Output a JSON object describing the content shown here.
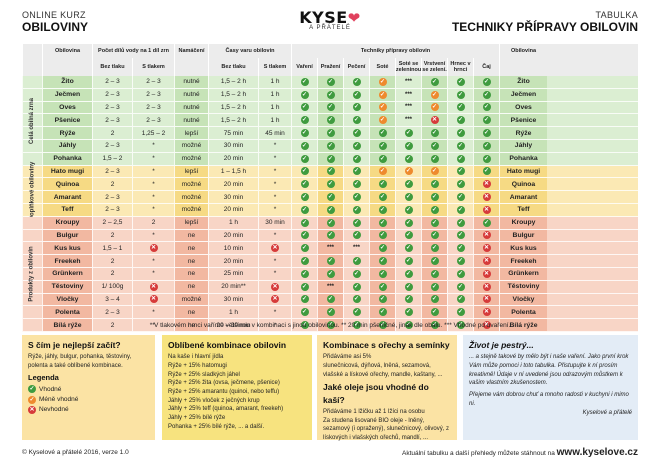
{
  "header": {
    "left_sub": "ONLINE KURZ",
    "left_main": "OBILOVINY",
    "logo": "KYSE",
    "logo_sub": "A PŘÁTELÉ",
    "right_sub": "TABULKA",
    "right_main": "TECHNIKY PŘÍPRAVY OBILOVIN"
  },
  "columns": {
    "grain": "Obilovina",
    "water_group": "Počet dílů vody na 1 díl zrn",
    "water_nopress": "Bez tlaku",
    "water_press": "S tlakem",
    "soak": "Namáčení",
    "time_group": "Časy varu obilovin",
    "time_nopress": "Bez tlaku",
    "time_press": "S tlakem",
    "tech_group": "Techniky přípravy obilovin",
    "tech": [
      "Vaření",
      "Pražení",
      "Pečení",
      "Soté",
      "Soté se zeleninou",
      "Vrstvení se zelení.",
      "Hrnec v hrnci",
      "Čaj"
    ],
    "grain_right": "Obilovina"
  },
  "groups": [
    {
      "label": "Celá obilná zrna",
      "rows": [
        {
          "name": "Žito",
          "w1": "2 – 3",
          "w2": "2 – 3",
          "soak": "nutné",
          "t1": "1,5 – 2 h",
          "t2": "1 h",
          "tech": [
            "ok",
            "ok",
            "ok",
            "mid",
            "***",
            "ok",
            "ok",
            "ok"
          ]
        },
        {
          "name": "Ječmen",
          "w1": "2 – 3",
          "w2": "2 – 3",
          "soak": "nutné",
          "t1": "1,5 – 2 h",
          "t2": "1 h",
          "tech": [
            "ok",
            "ok",
            "ok",
            "mid",
            "***",
            "mid",
            "ok",
            "ok"
          ]
        },
        {
          "name": "Oves",
          "w1": "2 – 3",
          "w2": "2 – 3",
          "soak": "nutné",
          "t1": "1,5 – 2 h",
          "t2": "1 h",
          "tech": [
            "ok",
            "ok",
            "ok",
            "mid",
            "***",
            "mid",
            "ok",
            "ok"
          ]
        },
        {
          "name": "Pšenice",
          "w1": "2 – 3",
          "w2": "2 – 3",
          "soak": "nutné",
          "t1": "1,5 – 2 h",
          "t2": "1 h",
          "tech": [
            "ok",
            "ok",
            "ok",
            "mid",
            "***",
            "no",
            "ok",
            "ok"
          ]
        },
        {
          "name": "Rýže",
          "w1": "2",
          "w2": "1,25 – 2",
          "soak": "lepší",
          "t1": "75 min",
          "t2": "45 min",
          "tech": [
            "ok",
            "ok",
            "ok",
            "ok",
            "ok",
            "ok",
            "ok",
            "ok"
          ]
        },
        {
          "name": "Jáhly",
          "w1": "2 – 3",
          "w2": "*",
          "soak": "možné",
          "t1": "30 min",
          "t2": "*",
          "tech": [
            "ok",
            "ok",
            "ok",
            "ok",
            "ok",
            "ok",
            "ok",
            "ok"
          ]
        },
        {
          "name": "Pohanka",
          "w1": "1,5 – 2",
          "w2": "*",
          "soak": "možné",
          "t1": "20 min",
          "t2": "*",
          "tech": [
            "ok",
            "ok",
            "ok",
            "ok",
            "ok",
            "ok",
            "ok",
            "ok"
          ]
        }
      ]
    },
    {
      "label": "Doplňkové obiloviny",
      "rows": [
        {
          "name": "Hato mugi",
          "w1": "2 – 3",
          "w2": "*",
          "soak": "lepší",
          "t1": "1 – 1,5 h",
          "t2": "*",
          "tech": [
            "ok",
            "ok",
            "ok",
            "mid",
            "mid",
            "mid",
            "ok",
            "ok"
          ]
        },
        {
          "name": "Quinoa",
          "w1": "2",
          "w2": "*",
          "soak": "možné",
          "t1": "20 min",
          "t2": "*",
          "tech": [
            "ok",
            "ok",
            "ok",
            "ok",
            "ok",
            "ok",
            "ok",
            "no"
          ]
        },
        {
          "name": "Amarant",
          "w1": "2 – 3",
          "w2": "*",
          "soak": "možné",
          "t1": "30 min",
          "t2": "*",
          "tech": [
            "ok",
            "ok",
            "ok",
            "ok",
            "ok",
            "ok",
            "ok",
            "no"
          ]
        },
        {
          "name": "Teff",
          "w1": "2 – 3",
          "w2": "*",
          "soak": "možné",
          "t1": "20 min",
          "t2": "*",
          "tech": [
            "ok",
            "ok",
            "ok",
            "ok",
            "ok",
            "ok",
            "ok",
            "no"
          ]
        }
      ]
    },
    {
      "label": "Produkty z obilovin",
      "rows": [
        {
          "name": "Kroupy",
          "w1": "2 – 2,5",
          "w2": "2",
          "soak": "lepší",
          "t1": "1 h",
          "t2": "30 min",
          "tech": [
            "ok",
            "ok",
            "ok",
            "ok",
            "ok",
            "ok",
            "ok",
            "ok"
          ]
        },
        {
          "name": "Bulgur",
          "w1": "2",
          "w2": "*",
          "soak": "ne",
          "t1": "20 min",
          "t2": "*",
          "tech": [
            "ok",
            "ok",
            "ok",
            "ok",
            "ok",
            "ok",
            "ok",
            "no"
          ]
        },
        {
          "name": "Kus kus",
          "w1": "1,5 – 1",
          "w2": "no",
          "soak": "ne",
          "t1": "10 min",
          "t2": "no",
          "tech": [
            "ok",
            "***",
            "***",
            "ok",
            "ok",
            "ok",
            "ok",
            "no"
          ]
        },
        {
          "name": "Freekeh",
          "w1": "2",
          "w2": "*",
          "soak": "ne",
          "t1": "20 min",
          "t2": "*",
          "tech": [
            "ok",
            "ok",
            "ok",
            "ok",
            "ok",
            "ok",
            "ok",
            "no"
          ]
        },
        {
          "name": "Grünkern",
          "w1": "2",
          "w2": "*",
          "soak": "ne",
          "t1": "25 min",
          "t2": "*",
          "tech": [
            "ok",
            "ok",
            "ok",
            "ok",
            "ok",
            "ok",
            "ok",
            "no"
          ]
        },
        {
          "name": "Těstoviny",
          "w1": "1/ 100g",
          "w2": "no",
          "soak": "ne",
          "t1": "20 min**",
          "t2": "no",
          "tech": [
            "ok",
            "***",
            "ok",
            "ok",
            "ok",
            "ok",
            "ok",
            "no"
          ]
        },
        {
          "name": "Vločky",
          "w1": "3 – 4",
          "w2": "no",
          "soak": "možné",
          "t1": "30 min",
          "t2": "no",
          "tech": [
            "ok",
            "ok",
            "ok",
            "ok",
            "ok",
            "ok",
            "ok",
            "no"
          ]
        },
        {
          "name": "Polenta",
          "w1": "2 – 3",
          "w2": "*",
          "soak": "ne",
          "t1": "1 h",
          "t2": "*",
          "tech": [
            "ok",
            "ok",
            "ok",
            "ok",
            "ok",
            "ok",
            "ok",
            "no"
          ]
        },
        {
          "name": "Bílá rýže",
          "w1": "2",
          "w2": "*",
          "soak": "ne",
          "t1": "20 – 30 min",
          "t2": "*",
          "tech": [
            "ok",
            "ok",
            "ok",
            "ok",
            "ok",
            "ok",
            "ok",
            "no"
          ]
        }
      ]
    }
  ],
  "footnote": "* V tlakovém hrnci vaříme většinou v kombinaci s jinou obilovinou.   ** 20 min pšeničné, jinak dle obalu.   *** Vhodné po uvaření.",
  "box1": {
    "title": "S čím je nejlepší začít?",
    "text": "Rýže, jáhly, bulgur, pohanka, těstoviny, polenta a také oblíbené kombinace.",
    "legend_title": "Legenda",
    "legend": [
      "Vhodné",
      "Méně vhodné",
      "Nevhodné"
    ]
  },
  "box2": {
    "title": "Oblíbené kombinace obilovin",
    "sub": "Na kaše i hlavní jídla",
    "items": [
      "Rýže + 15% hatomugi",
      "Rýže + 25% sladkých jáhel",
      "Rýže + 25% žita (ovsa, ječmene, pšenice)",
      "Rýže + 25% amarantu (quinoi, nebo teffu)",
      "Jáhly + 25% vloček z ječných krup",
      "Jáhly + 25% teff (quinoa, amarant, freekeh)",
      "Jáhly + 25% bílé rýže",
      "Pohanka + 25% bílé rýže, ... a další."
    ]
  },
  "box3": {
    "title": "Kombinace s ořechy a semínky",
    "t1": "Přidáváme asi 5%",
    "t2": "slunečnicová, dýňová, lněná, sezamová, vlašské a lískové ořechy, mandle, kaštany, ...",
    "title2": "Jaké oleje jsou vhodné do kaší?",
    "t3": "Přidáváme 1 lžičku až 1 lžíci na osobu",
    "t4": "Za studena lisované BIO oleje - lněný, sezamový (i opražený), slunečnicový, olivový, z lískových i vlašských ořechů, mandlí, ..."
  },
  "box4": {
    "title": "Život je pestrý...",
    "text": "... a stejně takové by mělo být i naše vaření. Jako první krok Vám může pomoci i toto tabulka. Přistupujte k ní prosím kreativně! Údaje v ní uvedené jsou odrazovým můstkem k vašim vlastním zkušenostem.",
    "text2": "Přejeme vám dobrou chuť a mnoho radosti v kuchyni i mimo ni.",
    "sign": "Kyselové a přátelé"
  },
  "footer": {
    "left": "© Kyselové a přátelé 2016, verze 1.0",
    "right_text": "Aktuální tabulku a další přehledy můžete stáhnout na",
    "right_url": "www.kyselove.cz"
  },
  "colors": {
    "ok": "#3f9b3f",
    "mid": "#ee8a2e",
    "no": "#d63a3a"
  }
}
